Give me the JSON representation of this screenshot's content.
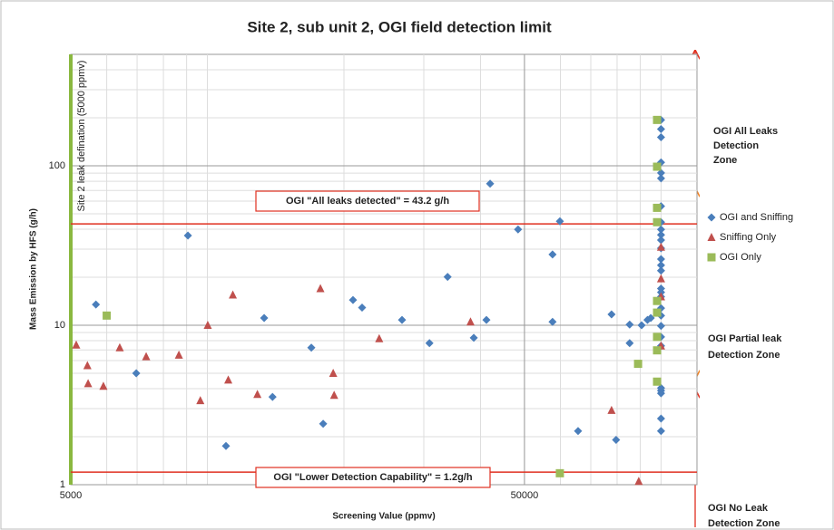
{
  "chart_data": {
    "type": "scatter",
    "title": "Site 2, sub unit 2, OGI field detection limit",
    "x_label": "Screening Value (ppmv)",
    "y_label": "Mass Emission by HFS (g/h)",
    "log_x": true,
    "log_y": true,
    "grid": true,
    "xlim": [
      5000,
      120000
    ],
    "ylim": [
      1,
      500
    ],
    "xticks": [
      5000,
      50000
    ],
    "yticks": [
      1,
      10,
      100
    ],
    "legend_position": "right",
    "thresholds": [
      {
        "value": 43.2,
        "label": "OGI \"All leaks detected\" = 43.2 g/h"
      },
      {
        "value": 1.2,
        "label": "OGI \"Lower Detection Capability\" = 1.2g/h"
      }
    ],
    "leak_definition": {
      "value": 5000,
      "label": "Site 2 leak defination (5000 ppmv)"
    },
    "zones": [
      {
        "lines": [
          "OGI All Leaks",
          "Detection",
          "Zone"
        ]
      },
      {
        "lines": [
          "OGI Partial leak",
          "Detection Zone"
        ]
      },
      {
        "lines": [
          "OGI  No Leak",
          "Detection Zone"
        ]
      }
    ],
    "series": [
      {
        "name": "OGI and Sniffing",
        "color": "#4a7ebb",
        "marker": "diamond",
        "x": [
          5680,
          6970,
          9060,
          10990,
          13340,
          13920,
          16950,
          18000,
          20940,
          21930,
          26860,
          30870,
          33850,
          38660,
          41220,
          42000,
          48400,
          57650,
          57650,
          59840,
          65630,
          77790,
          79600,
          85270,
          85270,
          90610,
          93350,
          94920,
          100000,
          100000,
          100000,
          100000,
          100000,
          100000,
          100000,
          100000,
          100000,
          100000,
          100000,
          100000,
          100000,
          100000,
          100000,
          100000,
          100000,
          100000,
          100000,
          100000,
          100000,
          100000,
          100000,
          100000,
          100000,
          100000,
          100000,
          100000
        ],
        "values": [
          13.5,
          5.0,
          36.5,
          1.75,
          11.1,
          3.55,
          7.24,
          2.41,
          14.4,
          12.9,
          10.8,
          7.72,
          20.1,
          8.34,
          10.8,
          77.2,
          39.9,
          27.8,
          10.5,
          44.9,
          2.17,
          11.7,
          1.91,
          10.1,
          7.72,
          10,
          10.8,
          11.1,
          194,
          170,
          151,
          105,
          90.2,
          83.4,
          55.8,
          44.3,
          39.9,
          36.9,
          34.2,
          30.4,
          26.0,
          23.8,
          22.0,
          17.0,
          16.1,
          15.1,
          12.8,
          11.5,
          9.9,
          8.45,
          7.43,
          4.04,
          3.89,
          3.74,
          2.6,
          2.17
        ]
      },
      {
        "name": "Sniffing Only",
        "color": "#c0504d",
        "marker": "triangle",
        "x": [
          5140,
          5440,
          5460,
          5900,
          6410,
          7330,
          8655,
          9650,
          10020,
          11120,
          11380,
          12890,
          17750,
          18940,
          19030,
          23920,
          38020,
          77790,
          89300,
          100000,
          100000,
          100000,
          100000
        ],
        "values": [
          7.52,
          5.59,
          4.31,
          4.15,
          7.24,
          6.36,
          6.5,
          3.37,
          10,
          4.54,
          15.5,
          3.69,
          17,
          5.0,
          3.64,
          8.24,
          10.5,
          2.93,
          1.05,
          19.6,
          15.1,
          30.9,
          7.43
        ]
      },
      {
        "name": "OGI Only",
        "color": "#9bbb59",
        "marker": "square",
        "x": [
          6000,
          59840,
          89000,
          98000,
          98000,
          98000,
          98000,
          98000,
          98000,
          98000,
          98000,
          98000
        ],
        "values": [
          11.5,
          1.18,
          5.73,
          194,
          98.7,
          54.5,
          44.3,
          14.2,
          12.0,
          8.45,
          6.96,
          4.43
        ]
      }
    ]
  }
}
